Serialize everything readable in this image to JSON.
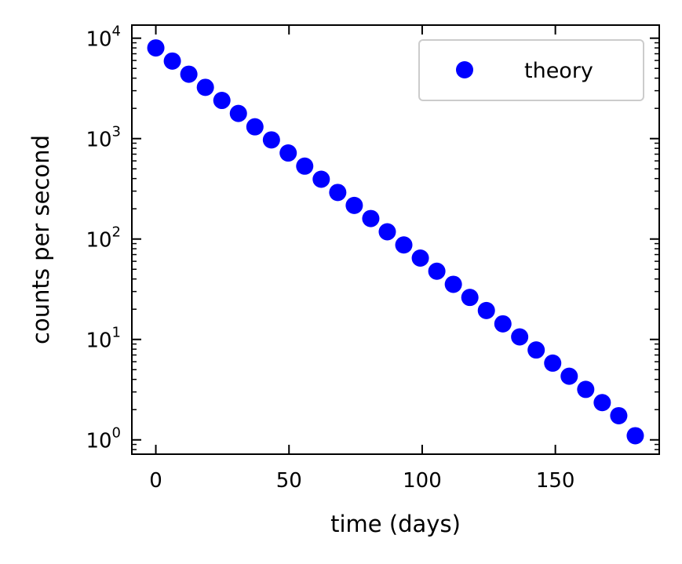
{
  "chart_data": {
    "type": "scatter",
    "title": "",
    "xlabel": "time (days)",
    "ylabel": "counts per second",
    "yscale": "log",
    "xlim": [
      -9,
      189
    ],
    "ylim": [
      0.72,
      13500
    ],
    "xticks": [
      0,
      50,
      100,
      150
    ],
    "xtick_labels": [
      "0",
      "50",
      "100",
      "150"
    ],
    "yticks": [
      1,
      10,
      100,
      1000,
      10000
    ],
    "ytick_labels": [
      {
        "base": "10",
        "exp": "0"
      },
      {
        "base": "10",
        "exp": "1"
      },
      {
        "base": "10",
        "exp": "2"
      },
      {
        "base": "10",
        "exp": "3"
      },
      {
        "base": "10",
        "exp": "4"
      }
    ],
    "grid": false,
    "legend_position": "upper right",
    "series": [
      {
        "name": "theory",
        "color": "#0000ff",
        "marker": "circle",
        "x": [
          0,
          6.2,
          12.4,
          18.6,
          24.8,
          31.0,
          37.2,
          43.4,
          49.7,
          55.9,
          62.1,
          68.3,
          74.5,
          80.7,
          86.9,
          93.1,
          99.3,
          105.5,
          111.7,
          117.9,
          124.1,
          130.3,
          136.6,
          142.8,
          149.0,
          155.2,
          161.4,
          167.6,
          173.8,
          180.0
        ],
        "y": [
          8000,
          5920,
          4380,
          3240,
          2400,
          1780,
          1310,
          971,
          719,
          532,
          394,
          291,
          216,
          160,
          118,
          87.3,
          64.6,
          47.8,
          35.4,
          26.2,
          19.4,
          14.3,
          10.6,
          7.85,
          5.81,
          4.3,
          3.18,
          2.35,
          1.74,
          1.1
        ]
      }
    ]
  }
}
